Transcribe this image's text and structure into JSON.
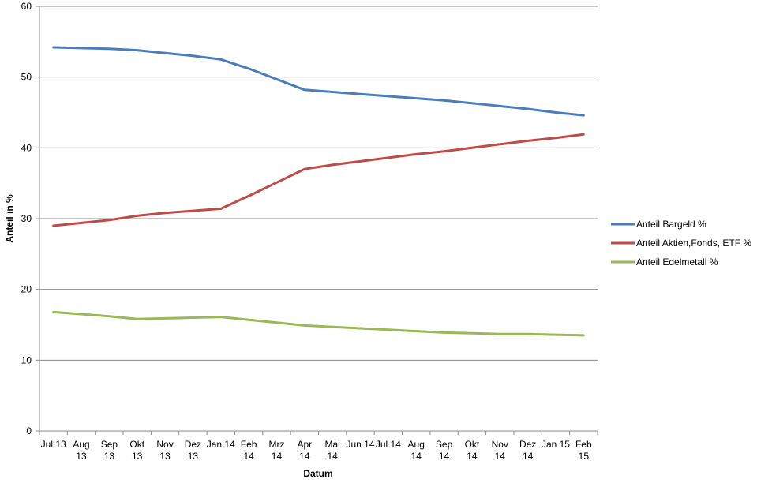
{
  "chart_data": {
    "type": "line",
    "xlabel": "Datum",
    "ylabel": "Anteil in %",
    "ylim": [
      0,
      60
    ],
    "yticks": [
      0,
      10,
      20,
      30,
      40,
      50,
      60
    ],
    "grid": true,
    "legend_position": "right",
    "categories": [
      [
        "Jul 13"
      ],
      [
        "Aug",
        "13"
      ],
      [
        "Sep",
        "13"
      ],
      [
        "Okt",
        "13"
      ],
      [
        "Nov",
        "13"
      ],
      [
        "Dez",
        "13"
      ],
      [
        "Jan 14"
      ],
      [
        "Feb",
        "14"
      ],
      [
        "Mrz",
        "14"
      ],
      [
        "Apr",
        "14"
      ],
      [
        "Mai",
        "14"
      ],
      [
        "Jun 14"
      ],
      [
        "Jul 14"
      ],
      [
        "Aug",
        "14"
      ],
      [
        "Sep",
        "14"
      ],
      [
        "Okt",
        "14"
      ],
      [
        "Nov",
        "14"
      ],
      [
        "Dez",
        "14"
      ],
      [
        "Jan 15"
      ],
      [
        "Feb",
        "15"
      ]
    ],
    "series": [
      {
        "name": "Anteil Bargeld %",
        "color": "#4a7ebb",
        "values": [
          54.2,
          54.1,
          54.0,
          53.8,
          53.4,
          53.0,
          52.5,
          51.2,
          49.7,
          48.2,
          47.9,
          47.6,
          47.3,
          47.0,
          46.7,
          46.3,
          45.9,
          45.5,
          45.0,
          44.6
        ]
      },
      {
        "name": "Anteil Aktien,Fonds, ETF %",
        "color": "#be4b48",
        "values": [
          29.0,
          29.4,
          29.8,
          30.4,
          30.8,
          31.1,
          31.4,
          33.2,
          35.1,
          37.0,
          37.6,
          38.1,
          38.6,
          39.1,
          39.5,
          40.0,
          40.5,
          41.0,
          41.4,
          41.9
        ]
      },
      {
        "name": "Anteil Edelmetall %",
        "color": "#98b954",
        "values": [
          16.8,
          16.5,
          16.2,
          15.8,
          15.9,
          16.0,
          16.1,
          15.7,
          15.3,
          14.9,
          14.7,
          14.5,
          14.3,
          14.1,
          13.9,
          13.8,
          13.7,
          13.7,
          13.6,
          13.5
        ]
      }
    ]
  }
}
